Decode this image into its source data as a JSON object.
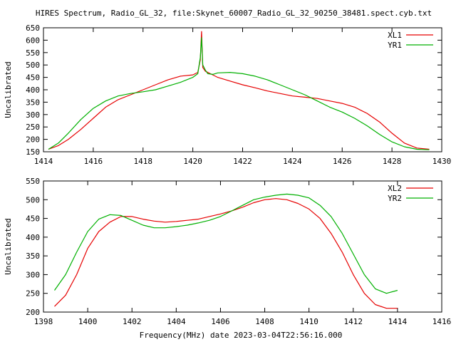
{
  "title": "HIRES Spectrum, Radio_GL_32, file:Skynet_60007_Radio_GL_32_90250_38481.spect.cyb.txt",
  "footer_label": "Frequency(MHz) date 2023-03-04T22:56:16.000",
  "colors": {
    "red": "#e60000",
    "green": "#00b000"
  },
  "chart_data": [
    {
      "type": "line",
      "xlabel": "",
      "ylabel": "Uncalibrated",
      "xlim": [
        1414,
        1430
      ],
      "ylim": [
        150,
        650
      ],
      "xticks": [
        1414,
        1416,
        1418,
        1420,
        1422,
        1424,
        1426,
        1428,
        1430
      ],
      "yticks": [
        150,
        200,
        250,
        300,
        350,
        400,
        450,
        500,
        550,
        600,
        650
      ],
      "legend_position": "top-right",
      "series": [
        {
          "name": "XL1",
          "color": "#e60000",
          "x": [
            1414.2,
            1414.6,
            1415.0,
            1415.5,
            1416.0,
            1416.5,
            1417.0,
            1417.5,
            1418.0,
            1418.5,
            1419.0,
            1419.5,
            1420.0,
            1420.2,
            1420.3,
            1420.35,
            1420.4,
            1420.5,
            1420.6,
            1420.8,
            1421.0,
            1421.5,
            1422.0,
            1422.5,
            1423.0,
            1423.5,
            1424.0,
            1424.5,
            1425.0,
            1425.5,
            1426.0,
            1426.5,
            1427.0,
            1427.5,
            1428.0,
            1428.5,
            1429.0,
            1429.5
          ],
          "y": [
            160,
            175,
            200,
            240,
            285,
            330,
            360,
            380,
            400,
            420,
            440,
            455,
            460,
            470,
            520,
            635,
            490,
            475,
            470,
            460,
            450,
            435,
            420,
            408,
            395,
            385,
            375,
            370,
            365,
            355,
            345,
            330,
            305,
            270,
            225,
            185,
            165,
            160
          ]
        },
        {
          "name": "YR1",
          "color": "#00b000",
          "x": [
            1414.2,
            1414.6,
            1415.0,
            1415.5,
            1416.0,
            1416.5,
            1417.0,
            1417.5,
            1418.0,
            1418.5,
            1419.0,
            1419.5,
            1420.0,
            1420.2,
            1420.3,
            1420.35,
            1420.4,
            1420.5,
            1420.6,
            1420.8,
            1421.0,
            1421.5,
            1422.0,
            1422.5,
            1423.0,
            1423.5,
            1424.0,
            1424.5,
            1425.0,
            1425.5,
            1426.0,
            1426.5,
            1427.0,
            1427.5,
            1428.0,
            1428.5,
            1429.0,
            1429.5
          ],
          "y": [
            160,
            185,
            225,
            280,
            325,
            355,
            375,
            385,
            392,
            400,
            415,
            430,
            450,
            465,
            530,
            610,
            500,
            480,
            465,
            462,
            468,
            470,
            465,
            455,
            440,
            420,
            400,
            380,
            355,
            330,
            310,
            285,
            255,
            220,
            190,
            170,
            160,
            158
          ]
        }
      ]
    },
    {
      "type": "line",
      "xlabel": "Frequency(MHz) date 2023-03-04T22:56:16.000",
      "ylabel": "Uncalibrated",
      "xlim": [
        1398,
        1416
      ],
      "ylim": [
        200,
        550
      ],
      "xticks": [
        1398,
        1400,
        1402,
        1404,
        1406,
        1408,
        1410,
        1412,
        1414,
        1416
      ],
      "yticks": [
        200,
        250,
        300,
        350,
        400,
        450,
        500,
        550
      ],
      "legend_position": "top-right",
      "series": [
        {
          "name": "XL2",
          "color": "#e60000",
          "x": [
            1398.5,
            1399.0,
            1399.5,
            1400.0,
            1400.5,
            1401.0,
            1401.5,
            1402.0,
            1402.5,
            1403.0,
            1403.5,
            1404.0,
            1404.5,
            1405.0,
            1405.5,
            1406.0,
            1406.5,
            1407.0,
            1407.5,
            1408.0,
            1408.5,
            1409.0,
            1409.5,
            1410.0,
            1410.5,
            1411.0,
            1411.5,
            1412.0,
            1412.5,
            1413.0,
            1413.5,
            1414.0
          ],
          "y": [
            215,
            245,
            300,
            370,
            415,
            440,
            455,
            455,
            448,
            443,
            440,
            442,
            445,
            448,
            455,
            462,
            470,
            480,
            492,
            500,
            503,
            500,
            490,
            475,
            450,
            410,
            360,
            300,
            250,
            220,
            210,
            210
          ]
        },
        {
          "name": "YR2",
          "color": "#00b000",
          "x": [
            1398.5,
            1399.0,
            1399.5,
            1400.0,
            1400.5,
            1401.0,
            1401.5,
            1402.0,
            1402.5,
            1403.0,
            1403.5,
            1404.0,
            1404.5,
            1405.0,
            1405.5,
            1406.0,
            1406.5,
            1407.0,
            1407.5,
            1408.0,
            1408.5,
            1409.0,
            1409.5,
            1410.0,
            1410.5,
            1411.0,
            1411.5,
            1412.0,
            1412.5,
            1413.0,
            1413.5,
            1414.0
          ],
          "y": [
            258,
            300,
            360,
            415,
            448,
            460,
            458,
            445,
            432,
            425,
            425,
            428,
            432,
            438,
            445,
            455,
            470,
            485,
            500,
            507,
            512,
            515,
            512,
            505,
            485,
            455,
            410,
            355,
            300,
            262,
            250,
            258
          ]
        }
      ]
    }
  ]
}
